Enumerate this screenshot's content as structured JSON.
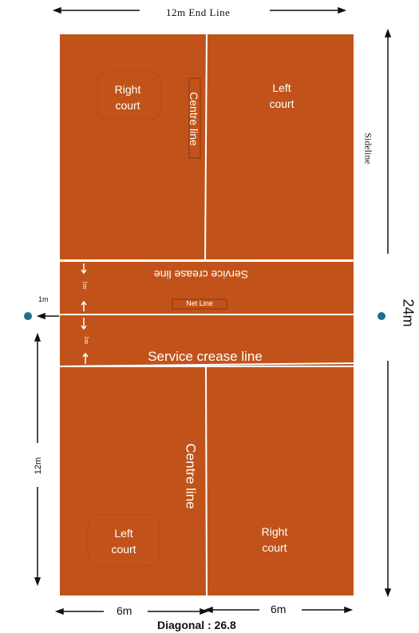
{
  "colors": {
    "court": "#c1531a",
    "lines": "#ffffff",
    "dots": "#1f6f86"
  },
  "dimensions": {
    "top_end_line": "12m End Line",
    "sideline": "Sideline",
    "length": "24m",
    "half_length": "12m",
    "half_width_left": "6m",
    "half_width_right": "6m",
    "net_offset": "1m",
    "crease_offset_top": "1m",
    "crease_offset_bottom": "1m",
    "diagonal": "Diagonal : 26.8"
  },
  "court": {
    "top_right_court": [
      "Right",
      "court"
    ],
    "top_left_court": [
      "Left",
      "court"
    ],
    "top_centre_line": "Centre line",
    "top_service_crease_line": "Service crease line",
    "net_line": "Net Line",
    "bottom_service_crease_line": "Service crease line",
    "bottom_centre_line": "Centre line",
    "bottom_left_court": [
      "Left",
      "court"
    ],
    "bottom_right_court": [
      "Right",
      "court"
    ]
  }
}
